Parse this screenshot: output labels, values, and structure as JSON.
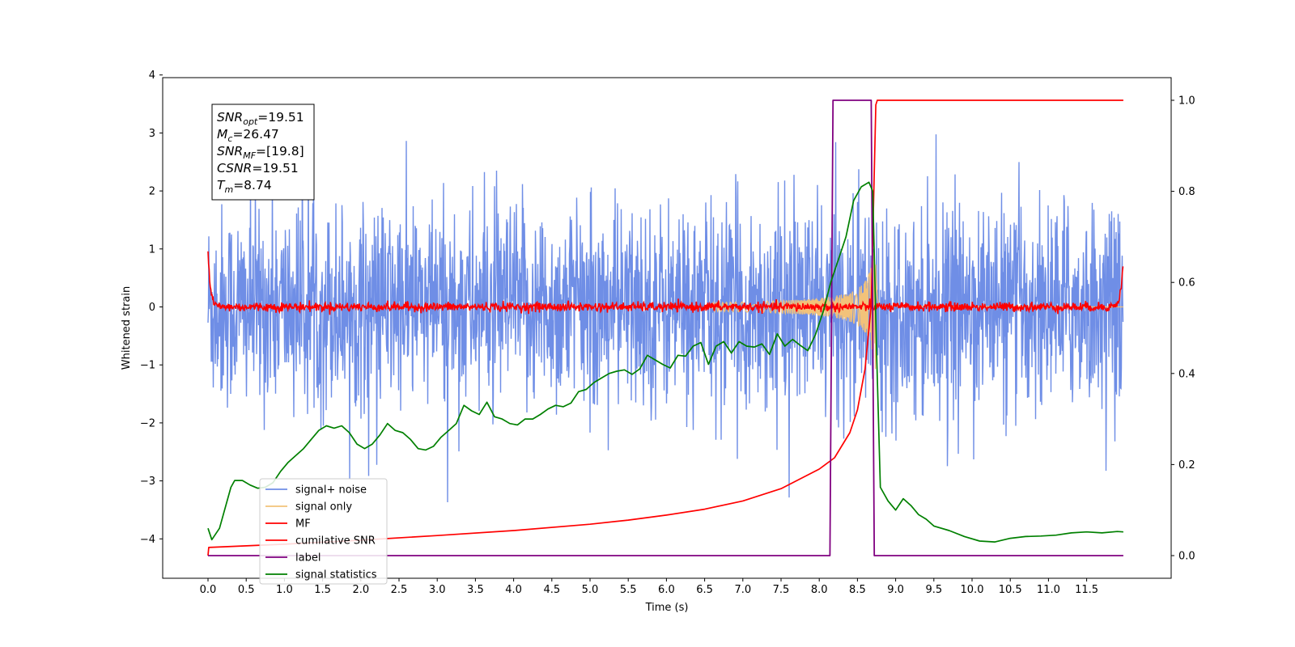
{
  "chart_data": {
    "type": "line",
    "title": "",
    "xlabel": "Time (s)",
    "ylabel": "Whitened strain",
    "xlim": [
      -0.6,
      12.5
    ],
    "ylim": [
      -4.55,
      4.05
    ],
    "y2lim": [
      -0.045,
      1.04
    ],
    "grid": false,
    "legend_position": "lower left",
    "x_ticks": [
      "0.0",
      "0.5",
      "1.0",
      "1.5",
      "2.0",
      "2.5",
      "3.0",
      "3.5",
      "4.0",
      "4.5",
      "5.0",
      "5.5",
      "6.0",
      "6.5",
      "7.0",
      "7.5",
      "8.0",
      "8.5",
      "9.0",
      "9.5",
      "10.0",
      "10.5",
      "11.0",
      "11.5"
    ],
    "y_ticks": [
      "4",
      "3",
      "2",
      "1",
      "0",
      "−1",
      "−2",
      "−3",
      "−4"
    ],
    "y2_ticks": [
      "1.0",
      "0.8",
      "0.6",
      "0.4",
      "0.2",
      "0.0"
    ],
    "annotation": {
      "lines": [
        {
          "base": "SNR",
          "sub": "opt",
          "rest": "=19.51"
        },
        {
          "base": "M",
          "sub": "c",
          "rest": "=26.47"
        },
        {
          "base": "SNR",
          "sub": "MF",
          "rest": "=[19.8]"
        },
        {
          "base": "CSNR",
          "sub": "",
          "rest": "=19.51"
        },
        {
          "base": "T",
          "sub": "m",
          "rest": "=8.74"
        }
      ]
    },
    "series": [
      {
        "name": "signal+ noise",
        "axis": "left",
        "color": "#6f8ee6",
        "kind": "noise",
        "t_start": 0.0,
        "t_end": 11.98,
        "std": 0.95
      },
      {
        "name": "signal only",
        "axis": "left",
        "color": "#f2c27a",
        "kind": "chirp",
        "t_merge": 8.74,
        "t_end": 11.98,
        "peak_amplitude": 1.5
      },
      {
        "name": "MF",
        "axis": "left",
        "color": "#ff0000",
        "kind": "matched-filter",
        "t_start": 0.0,
        "t_end": 11.98,
        "edge_value": 1.0
      },
      {
        "name": "cumilative SNR",
        "axis": "right",
        "color": "#ff0000",
        "x": [
          0.0,
          0.01,
          1,
          2,
          3,
          4,
          5,
          5.5,
          6,
          6.5,
          7,
          7.5,
          8.0,
          8.2,
          8.4,
          8.5,
          8.6,
          8.68,
          8.74,
          8.76,
          8.8,
          10,
          11,
          11.98
        ],
        "y": [
          0.0,
          0.018,
          0.025,
          0.034,
          0.044,
          0.055,
          0.069,
          0.078,
          0.089,
          0.102,
          0.12,
          0.147,
          0.19,
          0.215,
          0.27,
          0.32,
          0.41,
          0.55,
          0.99,
          1.0,
          1.0,
          1.0,
          1.0,
          1.0
        ]
      },
      {
        "name": "label",
        "axis": "right",
        "color": "#800080",
        "x": [
          0.0,
          8.14,
          8.18,
          8.68,
          8.72,
          11.98
        ],
        "y": [
          0.0,
          0.0,
          1.0,
          1.0,
          0.0,
          0.0
        ]
      },
      {
        "name": "signal statistics",
        "axis": "right",
        "color": "#008000",
        "x": [
          0.0,
          0.05,
          0.15,
          0.3,
          0.35,
          0.45,
          0.55,
          0.65,
          0.75,
          0.85,
          0.95,
          1.05,
          1.15,
          1.25,
          1.35,
          1.45,
          1.55,
          1.65,
          1.75,
          1.85,
          1.95,
          2.05,
          2.15,
          2.25,
          2.35,
          2.45,
          2.55,
          2.65,
          2.75,
          2.85,
          2.95,
          3.05,
          3.15,
          3.25,
          3.35,
          3.45,
          3.55,
          3.65,
          3.75,
          3.85,
          3.95,
          4.05,
          4.15,
          4.25,
          4.35,
          4.45,
          4.55,
          4.65,
          4.75,
          4.85,
          4.95,
          5.05,
          5.15,
          5.25,
          5.35,
          5.45,
          5.55,
          5.65,
          5.75,
          5.85,
          5.95,
          6.05,
          6.15,
          6.25,
          6.35,
          6.45,
          6.55,
          6.65,
          6.75,
          6.85,
          6.95,
          7.05,
          7.15,
          7.25,
          7.35,
          7.45,
          7.55,
          7.65,
          7.75,
          7.85,
          7.95,
          8.05,
          8.15,
          8.25,
          8.35,
          8.45,
          8.55,
          8.65,
          8.7,
          8.75,
          8.8,
          8.9,
          9.0,
          9.1,
          9.2,
          9.3,
          9.4,
          9.5,
          9.7,
          9.9,
          10.1,
          10.3,
          10.5,
          10.7,
          10.9,
          11.1,
          11.3,
          11.5,
          11.7,
          11.9,
          11.98
        ],
        "y": [
          0.06,
          0.035,
          0.06,
          0.15,
          0.165,
          0.165,
          0.155,
          0.148,
          0.15,
          0.16,
          0.185,
          0.205,
          0.22,
          0.235,
          0.255,
          0.275,
          0.285,
          0.28,
          0.285,
          0.27,
          0.245,
          0.235,
          0.245,
          0.265,
          0.29,
          0.275,
          0.27,
          0.255,
          0.235,
          0.232,
          0.24,
          0.26,
          0.275,
          0.29,
          0.33,
          0.318,
          0.31,
          0.337,
          0.305,
          0.3,
          0.29,
          0.287,
          0.3,
          0.3,
          0.31,
          0.322,
          0.33,
          0.327,
          0.335,
          0.36,
          0.365,
          0.38,
          0.39,
          0.4,
          0.405,
          0.408,
          0.398,
          0.41,
          0.44,
          0.43,
          0.42,
          0.412,
          0.44,
          0.438,
          0.46,
          0.468,
          0.42,
          0.46,
          0.47,
          0.445,
          0.47,
          0.46,
          0.458,
          0.465,
          0.442,
          0.487,
          0.46,
          0.475,
          0.462,
          0.45,
          0.485,
          0.535,
          0.6,
          0.65,
          0.7,
          0.78,
          0.81,
          0.82,
          0.8,
          0.45,
          0.15,
          0.12,
          0.1,
          0.125,
          0.11,
          0.09,
          0.08,
          0.065,
          0.055,
          0.042,
          0.032,
          0.03,
          0.038,
          0.042,
          0.043,
          0.045,
          0.05,
          0.052,
          0.05,
          0.053,
          0.052
        ]
      }
    ]
  }
}
